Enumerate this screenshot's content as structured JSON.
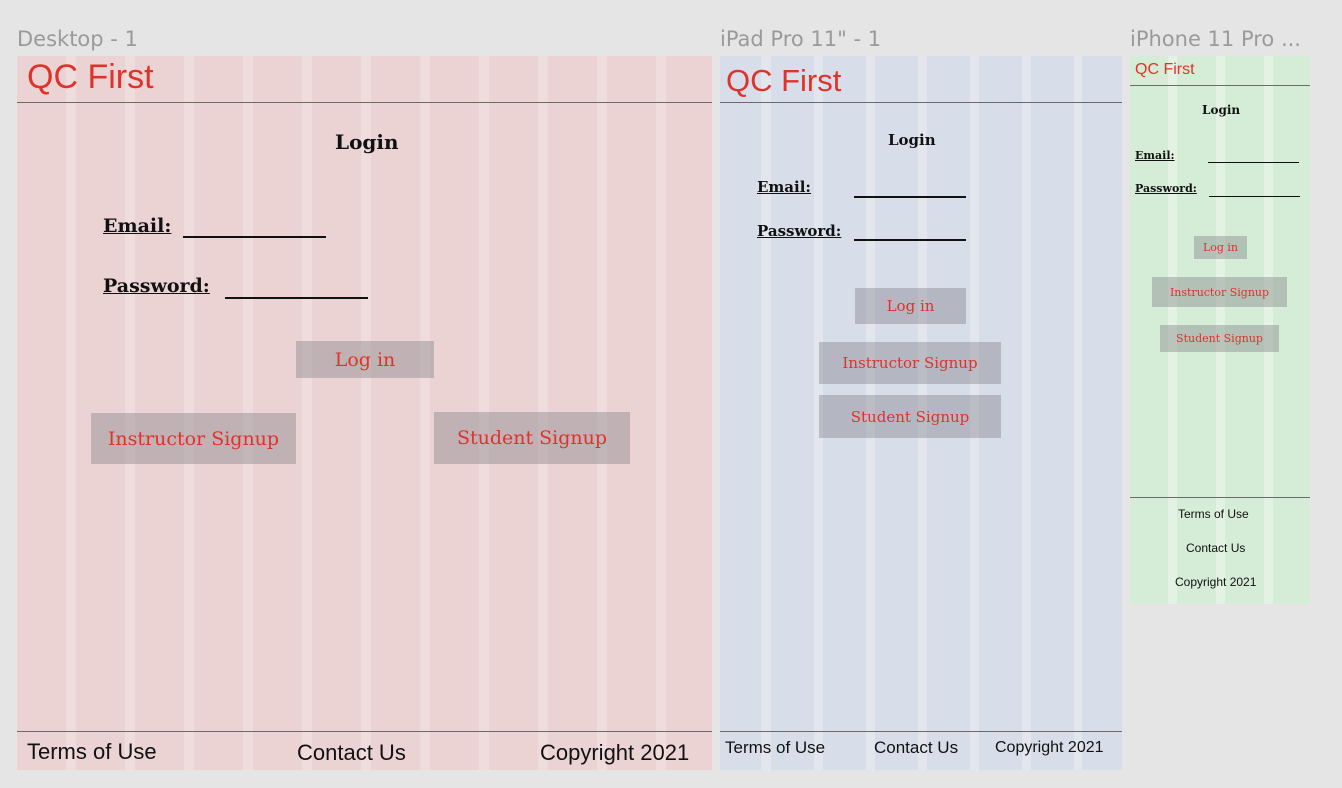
{
  "frames": {
    "desktop": {
      "label": "Desktop - 1"
    },
    "ipad": {
      "label": "iPad Pro 11\" - 1"
    },
    "iphone": {
      "label": "iPhone 11 Pro ..."
    }
  },
  "app": {
    "logo": "QC First",
    "login_title": "Login",
    "email_label": "Email:",
    "password_label": "Password:",
    "login_button": "Log in",
    "instructor_signup": "Instructor Signup",
    "student_signup": "Student Signup"
  },
  "footer": {
    "terms": "Terms of Use",
    "contact": "Contact Us",
    "copyright": "Copyright 2021"
  },
  "colors": {
    "accent": "#e0322b",
    "desktop_bg": "#ecd7d7",
    "desktop_col": "#e7c8c8",
    "ipad_bg": "#dfe3ee",
    "ipad_col": "#d3dbea",
    "iphone_bg": "#e3f2e3",
    "iphone_col": "#d3ecd5"
  }
}
